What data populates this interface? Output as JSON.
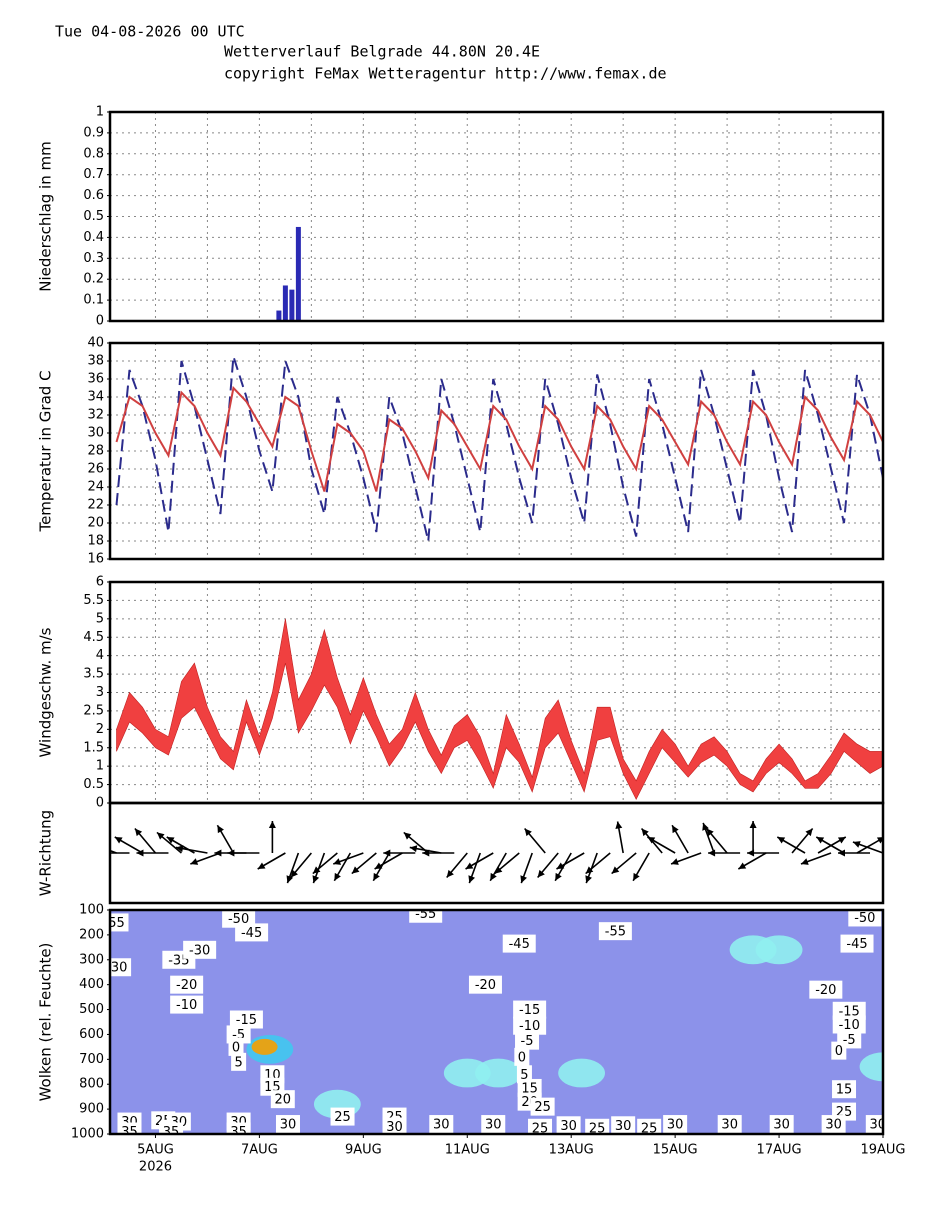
{
  "header": {
    "date": "Tue 04-08-2026 00 UTC",
    "title": "Wetterverlauf Belgrade  44.80N 20.4E",
    "copyright": "copyright FeMax Wetteragentur http://www.femax.de"
  },
  "chart_data": [
    {
      "type": "bar",
      "ylabel": "Niederschlag in mm",
      "x": [
        7.375,
        7.5,
        7.625,
        7.75
      ],
      "values": [
        0.05,
        0.17,
        0.15,
        0.45
      ],
      "color": "#2a2ab4",
      "xlim": [
        4.125,
        19
      ],
      "ylim": [
        0,
        1
      ],
      "yticks": [
        0,
        0.1,
        0.2,
        0.3,
        0.4,
        0.5,
        0.6,
        0.7,
        0.8,
        0.9,
        1
      ],
      "grid": true
    },
    {
      "type": "line",
      "ylabel": "Temperatur in Grad C",
      "x": [
        4.25,
        4.5,
        4.75,
        5,
        5.25,
        5.5,
        5.75,
        6,
        6.25,
        6.5,
        6.75,
        7,
        7.25,
        7.5,
        7.75,
        8,
        8.25,
        8.5,
        8.75,
        9,
        9.25,
        9.5,
        9.75,
        10,
        10.25,
        10.5,
        10.75,
        11,
        11.25,
        11.5,
        11.75,
        12,
        12.25,
        12.5,
        12.75,
        13,
        13.25,
        13.5,
        13.75,
        14,
        14.25,
        14.5,
        14.75,
        15,
        15.25,
        15.5,
        15.75,
        16,
        16.25,
        16.5,
        16.75,
        17,
        17.25,
        17.5,
        17.75,
        18,
        18.25,
        18.5,
        18.75,
        19
      ],
      "series": [
        {
          "color": "#2b2b8c",
          "dashed": true,
          "values": [
            22,
            37,
            33,
            27,
            19,
            38,
            33,
            27,
            21,
            38.5,
            34,
            28,
            23.5,
            38,
            34,
            26,
            21,
            34,
            30,
            25,
            19,
            34,
            30,
            24,
            18,
            36,
            31,
            25,
            19,
            36,
            31,
            25,
            20,
            36,
            31,
            25,
            20,
            36.5,
            31,
            24,
            18.5,
            36,
            31,
            25,
            19,
            37,
            32,
            26,
            20,
            37,
            32,
            25,
            19,
            37,
            32,
            26,
            20,
            36.5,
            32,
            25
          ]
        },
        {
          "color": "#d04040",
          "dashed": false,
          "values": [
            29,
            34,
            33,
            30,
            27.5,
            34.5,
            33,
            30,
            27.5,
            35,
            33.5,
            31,
            28.5,
            34,
            33,
            28,
            23.5,
            31,
            30,
            28,
            23.5,
            31.5,
            30.5,
            28,
            25,
            32.5,
            31,
            28.5,
            26,
            33,
            31.5,
            28.5,
            26,
            33,
            31.5,
            28.5,
            26,
            33,
            31.5,
            28.5,
            26,
            33,
            31.5,
            29,
            26.5,
            33.5,
            32,
            29,
            26.5,
            33.5,
            32,
            29,
            26.5,
            34,
            32.5,
            29.5,
            27,
            33.5,
            32,
            29
          ]
        }
      ],
      "xlim": [
        4.125,
        19
      ],
      "ylim": [
        16,
        40
      ],
      "yticks": [
        16,
        18,
        20,
        22,
        24,
        26,
        28,
        30,
        32,
        34,
        36,
        38,
        40
      ],
      "grid": true
    },
    {
      "type": "band",
      "ylabel": "Windgeschw. m/s",
      "color": "#f04040",
      "x": [
        4.25,
        4.5,
        4.75,
        5,
        5.25,
        5.5,
        5.75,
        6,
        6.25,
        6.5,
        6.75,
        7,
        7.25,
        7.5,
        7.75,
        8,
        8.25,
        8.5,
        8.75,
        9,
        9.25,
        9.5,
        9.75,
        10,
        10.25,
        10.5,
        10.75,
        11,
        11.25,
        11.5,
        11.75,
        12,
        12.25,
        12.5,
        12.75,
        13,
        13.25,
        13.5,
        13.75,
        14,
        14.25,
        14.5,
        14.75,
        15,
        15.25,
        15.5,
        15.75,
        16,
        16.25,
        16.5,
        16.75,
        17,
        17.25,
        17.5,
        17.75,
        18,
        18.25,
        18.5,
        18.75,
        19
      ],
      "series": [
        {
          "values": [
            2.0,
            3.0,
            2.6,
            2.0,
            1.8,
            3.3,
            3.8,
            2.6,
            1.8,
            1.4,
            2.8,
            1.8,
            3.0,
            5.0,
            2.8,
            3.5,
            4.7,
            3.4,
            2.4,
            3.4,
            2.4,
            1.6,
            2.0,
            3.0,
            2.0,
            1.3,
            2.1,
            2.4,
            1.8,
            0.8,
            2.4,
            1.6,
            0.7,
            2.3,
            2.8,
            1.7,
            0.8,
            2.6,
            2.6,
            1.2,
            0.6,
            1.4,
            2.0,
            1.6,
            1.0,
            1.6,
            1.8,
            1.4,
            0.8,
            0.6,
            1.2,
            1.6,
            1.2,
            0.6,
            0.8,
            1.3,
            1.9,
            1.6,
            1.4,
            1.4
          ]
        },
        {
          "values": [
            1.4,
            2.2,
            1.9,
            1.5,
            1.3,
            2.3,
            2.6,
            1.9,
            1.2,
            0.9,
            2.2,
            1.3,
            2.3,
            3.8,
            1.9,
            2.5,
            3.2,
            2.6,
            1.6,
            2.5,
            1.8,
            1.0,
            1.5,
            2.2,
            1.4,
            0.8,
            1.5,
            1.7,
            1.1,
            0.4,
            1.5,
            1.1,
            0.3,
            1.5,
            1.9,
            1.1,
            0.3,
            1.7,
            1.8,
            0.8,
            0.1,
            0.8,
            1.5,
            1.1,
            0.7,
            1.1,
            1.3,
            1.0,
            0.5,
            0.3,
            0.8,
            1.1,
            0.8,
            0.4,
            0.4,
            0.8,
            1.4,
            1.1,
            0.8,
            1.0
          ]
        }
      ],
      "xlim": [
        4.125,
        19
      ],
      "ylim": [
        0,
        6
      ],
      "yticks": [
        0,
        0.5,
        1,
        1.5,
        2,
        2.5,
        3,
        3.5,
        4,
        4.5,
        5,
        5.5,
        6
      ],
      "grid": true
    },
    {
      "type": "vector",
      "ylabel": "W-Richtung",
      "x": [
        4.25,
        4.5,
        4.75,
        5,
        5.25,
        5.5,
        5.75,
        6,
        6.25,
        6.5,
        6.75,
        7,
        7.25,
        7.5,
        7.75,
        8,
        8.25,
        8.5,
        8.75,
        9,
        9.25,
        9.5,
        9.75,
        10,
        10.25,
        10.5,
        10.75,
        11,
        11.25,
        11.5,
        11.75,
        12,
        12.25,
        12.5,
        12.75,
        13,
        13.25,
        13.5,
        13.75,
        14,
        14.25,
        14.5,
        14.75,
        15,
        15.25,
        15.5,
        15.75,
        16,
        16.25,
        16.5,
        16.75,
        17,
        17.25,
        17.5,
        17.75,
        18,
        18.25,
        18.5,
        18.75,
        19
      ],
      "values": [
        290,
        270,
        300,
        320,
        270,
        310,
        300,
        280,
        250,
        330,
        270,
        270,
        0,
        240,
        200,
        220,
        200,
        230,
        210,
        250,
        230,
        210,
        240,
        270,
        310,
        280,
        270,
        220,
        200,
        240,
        210,
        230,
        200,
        320,
        220,
        210,
        240,
        200,
        230,
        350,
        230,
        210,
        320,
        300,
        330,
        250,
        340,
        320,
        270,
        0,
        240,
        270,
        40,
        300,
        60,
        250,
        300,
        60,
        270,
        290
      ],
      "xlim": [
        4.125,
        19
      ]
    },
    {
      "type": "contour",
      "ylabel": "Wolken (rel. Feuchte)",
      "fill_color": "#8c92ea",
      "xlim": [
        4.125,
        19
      ],
      "ylim": [
        1000,
        100
      ],
      "yticks": [
        100,
        200,
        300,
        400,
        500,
        600,
        700,
        800,
        900,
        1000
      ],
      "xticks": [
        {
          "value": 5,
          "label": "5AUG"
        },
        {
          "value": 7,
          "label": "7AUG"
        },
        {
          "value": 9,
          "label": "9AUG"
        },
        {
          "value": 11,
          "label": "11AUG"
        },
        {
          "value": 13,
          "label": "13AUG"
        },
        {
          "value": 15,
          "label": "15AUG"
        },
        {
          "value": 17,
          "label": "17AUG"
        },
        {
          "value": 19,
          "label": "19AUG"
        }
      ],
      "xminor": [
        6,
        8,
        10,
        12,
        14,
        16,
        18
      ],
      "year": "2026",
      "patches": [
        {
          "x": 7.2,
          "y": 660,
          "value": 90
        },
        {
          "x": 7.1,
          "y": 650,
          "value": 100
        },
        {
          "x": 8.5,
          "y": 880,
          "value": 80
        },
        {
          "x": 11.0,
          "y": 755,
          "value": 80
        },
        {
          "x": 11.6,
          "y": 755,
          "value": 80
        },
        {
          "x": 13.2,
          "y": 755,
          "value": 80
        },
        {
          "x": 16.5,
          "y": 260,
          "value": 80
        },
        {
          "x": 17.0,
          "y": 260,
          "value": 80
        },
        {
          "x": 19.0,
          "y": 730,
          "value": 80
        }
      ],
      "labels": [
        {
          "x": 4.25,
          "y": 150,
          "label": "55"
        },
        {
          "x": 4.3,
          "y": 330,
          "label": "30"
        },
        {
          "x": 6.6,
          "y": 135,
          "label": "-50"
        },
        {
          "x": 6.85,
          "y": 190,
          "label": "-45"
        },
        {
          "x": 5.45,
          "y": 300,
          "label": "-35"
        },
        {
          "x": 5.85,
          "y": 260,
          "label": "-30"
        },
        {
          "x": 5.6,
          "y": 400,
          "label": "-20"
        },
        {
          "x": 5.6,
          "y": 480,
          "label": "-10"
        },
        {
          "x": 6.75,
          "y": 540,
          "label": "-15"
        },
        {
          "x": 6.6,
          "y": 600,
          "label": "-5"
        },
        {
          "x": 6.55,
          "y": 650,
          "label": "0"
        },
        {
          "x": 6.6,
          "y": 710,
          "label": "5"
        },
        {
          "x": 7.25,
          "y": 760,
          "label": "10"
        },
        {
          "x": 7.25,
          "y": 810,
          "label": "15"
        },
        {
          "x": 7.45,
          "y": 860,
          "label": "20"
        },
        {
          "x": 10.2,
          "y": 115,
          "label": "-55"
        },
        {
          "x": 13.85,
          "y": 185,
          "label": "-55"
        },
        {
          "x": 12.0,
          "y": 235,
          "label": "-45"
        },
        {
          "x": 11.35,
          "y": 400,
          "label": "-20"
        },
        {
          "x": 12.2,
          "y": 500,
          "label": "-15"
        },
        {
          "x": 12.2,
          "y": 565,
          "label": "-10"
        },
        {
          "x": 12.15,
          "y": 625,
          "label": "-5"
        },
        {
          "x": 12.05,
          "y": 690,
          "label": "0"
        },
        {
          "x": 12.1,
          "y": 760,
          "label": "5"
        },
        {
          "x": 12.2,
          "y": 815,
          "label": "15"
        },
        {
          "x": 12.2,
          "y": 870,
          "label": "20"
        },
        {
          "x": 12.45,
          "y": 890,
          "label": "25"
        },
        {
          "x": 18.65,
          "y": 130,
          "label": "-50"
        },
        {
          "x": 18.5,
          "y": 235,
          "label": "-45"
        },
        {
          "x": 17.9,
          "y": 420,
          "label": "-20"
        },
        {
          "x": 18.35,
          "y": 505,
          "label": "-15"
        },
        {
          "x": 18.35,
          "y": 560,
          "label": "-10"
        },
        {
          "x": 18.35,
          "y": 620,
          "label": "-5"
        },
        {
          "x": 18.15,
          "y": 665,
          "label": "0"
        },
        {
          "x": 18.25,
          "y": 820,
          "label": "15"
        },
        {
          "x": 18.25,
          "y": 910,
          "label": "25"
        },
        {
          "x": 4.5,
          "y": 950,
          "label": "30"
        },
        {
          "x": 5.15,
          "y": 945,
          "label": "25"
        },
        {
          "x": 5.45,
          "y": 950,
          "label": "30"
        },
        {
          "x": 6.6,
          "y": 950,
          "label": "30"
        },
        {
          "x": 7.55,
          "y": 960,
          "label": "30"
        },
        {
          "x": 8.6,
          "y": 930,
          "label": "25"
        },
        {
          "x": 9.6,
          "y": 930,
          "label": "25"
        },
        {
          "x": 9.6,
          "y": 970,
          "label": "30"
        },
        {
          "x": 10.5,
          "y": 960,
          "label": "30"
        },
        {
          "x": 11.5,
          "y": 960,
          "label": "30"
        },
        {
          "x": 12.4,
          "y": 975,
          "label": "25"
        },
        {
          "x": 12.95,
          "y": 965,
          "label": "30"
        },
        {
          "x": 13.5,
          "y": 975,
          "label": "25"
        },
        {
          "x": 14.0,
          "y": 965,
          "label": "30"
        },
        {
          "x": 14.5,
          "y": 975,
          "label": "25"
        },
        {
          "x": 15.0,
          "y": 960,
          "label": "30"
        },
        {
          "x": 16.05,
          "y": 960,
          "label": "30"
        },
        {
          "x": 17.05,
          "y": 960,
          "label": "30"
        },
        {
          "x": 18.05,
          "y": 960,
          "label": "30"
        },
        {
          "x": 18.9,
          "y": 960,
          "label": "30"
        },
        {
          "x": 4.5,
          "y": 990,
          "label": "35"
        },
        {
          "x": 5.3,
          "y": 990,
          "label": "35"
        },
        {
          "x": 6.6,
          "y": 990,
          "label": "35"
        }
      ]
    }
  ]
}
